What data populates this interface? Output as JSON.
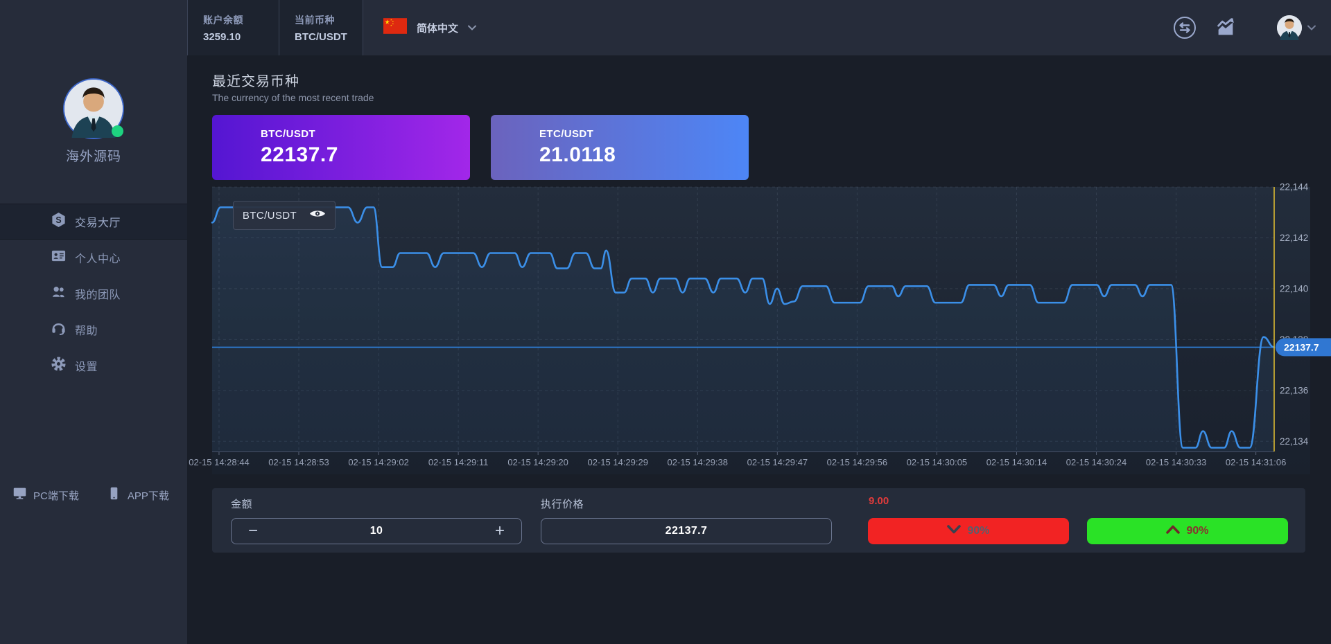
{
  "header": {
    "balance_label": "账户余额",
    "balance_value": "3259.10",
    "pair_label": "当前币种",
    "pair_value": "BTC/USDT",
    "language": "简体中文",
    "flag_icon": "china-flag-icon",
    "right_icons": [
      "swap-icon",
      "market-icon",
      "user-avatar"
    ]
  },
  "sidebar": {
    "username": "海外源码",
    "status": "online",
    "menu": [
      {
        "label": "交易大厅",
        "icon": "hexagon-coin-icon",
        "active": true
      },
      {
        "label": "个人中心",
        "icon": "id-card-icon",
        "active": false
      },
      {
        "label": "我的团队",
        "icon": "team-icon",
        "active": false
      },
      {
        "label": "帮助",
        "icon": "headset-icon",
        "active": false
      },
      {
        "label": "设置",
        "icon": "gear-icon",
        "active": false
      }
    ],
    "downloads": [
      {
        "label": "PC端下载",
        "icon": "monitor-icon"
      },
      {
        "label": "APP下载",
        "icon": "phone-icon"
      }
    ]
  },
  "recent": {
    "title": "最近交易币种",
    "subtitle": "The currency of the most recent trade",
    "cards": [
      {
        "pair": "BTC/USDT",
        "price": "22137.7",
        "gradient": [
          "#5416d2",
          "#a227e9"
        ]
      },
      {
        "pair": "ETC/USDT",
        "price": "21.0118",
        "gradient": [
          "#6b63bd",
          "#4d86f6"
        ]
      }
    ]
  },
  "chart_data": {
    "type": "line",
    "title": "BTC/USDT",
    "legend": {
      "label": "BTC/USDT",
      "position": "top-left",
      "eye_icon": "eye-icon"
    },
    "xlabel": "",
    "ylabel": "",
    "grid": "dashed",
    "x_ticks": [
      "02-15 14:28:44",
      "02-15 14:28:53",
      "02-15 14:29:02",
      "02-15 14:29:11",
      "02-15 14:29:20",
      "02-15 14:29:29",
      "02-15 14:29:38",
      "02-15 14:29:47",
      "02-15 14:29:56",
      "02-15 14:30:05",
      "02-15 14:30:14",
      "02-15 14:30:24",
      "02-15 14:30:33",
      "02-15 14:31:06"
    ],
    "y_tick_values": [
      22134,
      22136,
      22138,
      22140,
      22142,
      22144
    ],
    "y_tick_labels": [
      "22,134",
      "22,136",
      "22,138",
      "22,140",
      "22,142",
      "22,144"
    ],
    "ylim": [
      22133.6,
      22144.0
    ],
    "current_price": 22137.7,
    "price_badge": "22137.7",
    "colors": {
      "line": "#3b8fe8",
      "price_line": "#2e7fd8",
      "badge": "#3077d2",
      "time_marker": "#d9b832"
    },
    "series": [
      {
        "name": "BTC/USDT",
        "points": [
          [
            0.0,
            22142.6
          ],
          [
            0.008,
            22143.2
          ],
          [
            0.06,
            22143.2
          ],
          [
            0.128,
            22143.2
          ],
          [
            0.137,
            22142.6
          ],
          [
            0.146,
            22143.2
          ],
          [
            0.152,
            22143.2
          ],
          [
            0.16,
            22140.85
          ],
          [
            0.17,
            22140.85
          ],
          [
            0.177,
            22141.4
          ],
          [
            0.202,
            22141.4
          ],
          [
            0.21,
            22140.85
          ],
          [
            0.218,
            22141.4
          ],
          [
            0.246,
            22141.4
          ],
          [
            0.254,
            22140.85
          ],
          [
            0.262,
            22141.4
          ],
          [
            0.285,
            22141.4
          ],
          [
            0.292,
            22140.85
          ],
          [
            0.3,
            22141.4
          ],
          [
            0.318,
            22141.4
          ],
          [
            0.325,
            22140.8
          ],
          [
            0.334,
            22140.8
          ],
          [
            0.342,
            22141.4
          ],
          [
            0.352,
            22141.4
          ],
          [
            0.36,
            22140.8
          ],
          [
            0.366,
            22140.8
          ],
          [
            0.371,
            22141.5
          ],
          [
            0.38,
            22139.85
          ],
          [
            0.388,
            22139.85
          ],
          [
            0.395,
            22140.4
          ],
          [
            0.408,
            22140.4
          ],
          [
            0.415,
            22139.85
          ],
          [
            0.422,
            22140.4
          ],
          [
            0.436,
            22140.4
          ],
          [
            0.443,
            22139.85
          ],
          [
            0.45,
            22140.4
          ],
          [
            0.464,
            22140.4
          ],
          [
            0.472,
            22139.85
          ],
          [
            0.479,
            22140.4
          ],
          [
            0.494,
            22140.4
          ],
          [
            0.502,
            22139.85
          ],
          [
            0.509,
            22140.4
          ],
          [
            0.518,
            22140.4
          ],
          [
            0.525,
            22139.4
          ],
          [
            0.532,
            22140.0
          ],
          [
            0.539,
            22139.4
          ],
          [
            0.548,
            22139.5
          ],
          [
            0.556,
            22140.1
          ],
          [
            0.578,
            22140.1
          ],
          [
            0.586,
            22139.45
          ],
          [
            0.61,
            22139.45
          ],
          [
            0.618,
            22140.1
          ],
          [
            0.64,
            22140.1
          ],
          [
            0.646,
            22139.7
          ],
          [
            0.653,
            22140.1
          ],
          [
            0.673,
            22140.1
          ],
          [
            0.681,
            22139.45
          ],
          [
            0.705,
            22139.45
          ],
          [
            0.713,
            22140.15
          ],
          [
            0.736,
            22140.15
          ],
          [
            0.743,
            22139.7
          ],
          [
            0.75,
            22140.15
          ],
          [
            0.77,
            22140.15
          ],
          [
            0.778,
            22139.45
          ],
          [
            0.802,
            22139.45
          ],
          [
            0.81,
            22140.15
          ],
          [
            0.833,
            22140.15
          ],
          [
            0.84,
            22139.7
          ],
          [
            0.847,
            22140.15
          ],
          [
            0.869,
            22140.15
          ],
          [
            0.876,
            22139.7
          ],
          [
            0.883,
            22140.15
          ],
          [
            0.903,
            22140.15
          ],
          [
            0.914,
            22133.75
          ],
          [
            0.926,
            22133.75
          ],
          [
            0.933,
            22134.4
          ],
          [
            0.941,
            22133.75
          ],
          [
            0.953,
            22133.75
          ],
          [
            0.96,
            22134.4
          ],
          [
            0.968,
            22133.75
          ],
          [
            0.977,
            22133.75
          ],
          [
            0.99,
            22138.1
          ],
          [
            1.0,
            22137.7
          ]
        ]
      }
    ]
  },
  "controls": {
    "amount_label": "金额",
    "amount_value": "10",
    "minus": "−",
    "plus": "+",
    "price_label": "执行价格",
    "price_value": "22137.7",
    "countdown": "9.00",
    "down_button": {
      "label": "90%",
      "icon": "chevron-down-icon",
      "color": "#f22323"
    },
    "up_button": {
      "label": "90%",
      "icon": "chevron-up-icon",
      "color": "#2ae226"
    }
  }
}
